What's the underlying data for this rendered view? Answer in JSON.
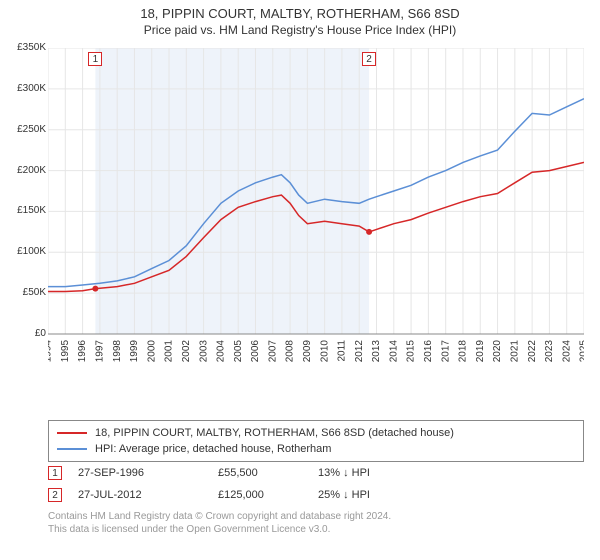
{
  "title_line1": "18, PIPPIN COURT, MALTBY, ROTHERHAM, S66 8SD",
  "title_line2": "Price paid vs. HM Land Registry's House Price Index (HPI)",
  "chart": {
    "type": "line",
    "background_color": "#ffffff",
    "grid_color": "#e6e6e6",
    "shaded_band_color": "#eef3fa",
    "shaded_band_x_start": 1996.74,
    "shaded_band_x_end": 2012.57,
    "xlim": [
      1994,
      2025
    ],
    "ylim": [
      0,
      350000
    ],
    "ytick_step": 50000,
    "ytick_labels": [
      "£0",
      "£50K",
      "£100K",
      "£150K",
      "£200K",
      "£250K",
      "£300K",
      "£350K"
    ],
    "xtick_step": 1,
    "xtick_labels": [
      "1994",
      "1995",
      "1996",
      "1997",
      "1998",
      "1999",
      "2000",
      "2001",
      "2002",
      "2003",
      "2004",
      "2005",
      "2006",
      "2007",
      "2008",
      "2009",
      "2010",
      "2011",
      "2012",
      "2013",
      "2014",
      "2015",
      "2016",
      "2017",
      "2018",
      "2019",
      "2020",
      "2021",
      "2022",
      "2023",
      "2024",
      "2025"
    ],
    "axis_label_fontsize": 10,
    "axis_label_color": "#333333",
    "tick_rotation_deg": -90,
    "series": [
      {
        "name": "price_paid",
        "legend_label": "18, PIPPIN COURT, MALTBY, ROTHERHAM, S66 8SD (detached house)",
        "color": "#d62728",
        "line_width": 1.5,
        "data": [
          [
            1994,
            52000
          ],
          [
            1995,
            52000
          ],
          [
            1996,
            53000
          ],
          [
            1996.74,
            55500
          ],
          [
            1997,
            56000
          ],
          [
            1998,
            58000
          ],
          [
            1999,
            62000
          ],
          [
            2000,
            70000
          ],
          [
            2001,
            78000
          ],
          [
            2002,
            95000
          ],
          [
            2003,
            118000
          ],
          [
            2004,
            140000
          ],
          [
            2005,
            155000
          ],
          [
            2006,
            162000
          ],
          [
            2007,
            168000
          ],
          [
            2007.5,
            170000
          ],
          [
            2008,
            160000
          ],
          [
            2008.5,
            145000
          ],
          [
            2009,
            135000
          ],
          [
            2010,
            138000
          ],
          [
            2011,
            135000
          ],
          [
            2012,
            132000
          ],
          [
            2012.57,
            125000
          ],
          [
            2013,
            128000
          ],
          [
            2014,
            135000
          ],
          [
            2015,
            140000
          ],
          [
            2016,
            148000
          ],
          [
            2017,
            155000
          ],
          [
            2018,
            162000
          ],
          [
            2019,
            168000
          ],
          [
            2020,
            172000
          ],
          [
            2021,
            185000
          ],
          [
            2022,
            198000
          ],
          [
            2023,
            200000
          ],
          [
            2024,
            205000
          ],
          [
            2025,
            210000
          ]
        ]
      },
      {
        "name": "hpi",
        "legend_label": "HPI: Average price, detached house, Rotherham",
        "color": "#5b8fd6",
        "line_width": 1.5,
        "data": [
          [
            1994,
            58000
          ],
          [
            1995,
            58000
          ],
          [
            1996,
            60000
          ],
          [
            1997,
            62000
          ],
          [
            1998,
            65000
          ],
          [
            1999,
            70000
          ],
          [
            2000,
            80000
          ],
          [
            2001,
            90000
          ],
          [
            2002,
            108000
          ],
          [
            2003,
            135000
          ],
          [
            2004,
            160000
          ],
          [
            2005,
            175000
          ],
          [
            2006,
            185000
          ],
          [
            2007,
            192000
          ],
          [
            2007.5,
            195000
          ],
          [
            2008,
            185000
          ],
          [
            2008.5,
            170000
          ],
          [
            2009,
            160000
          ],
          [
            2010,
            165000
          ],
          [
            2011,
            162000
          ],
          [
            2012,
            160000
          ],
          [
            2012.57,
            165000
          ],
          [
            2013,
            168000
          ],
          [
            2014,
            175000
          ],
          [
            2015,
            182000
          ],
          [
            2016,
            192000
          ],
          [
            2017,
            200000
          ],
          [
            2018,
            210000
          ],
          [
            2019,
            218000
          ],
          [
            2020,
            225000
          ],
          [
            2021,
            248000
          ],
          [
            2022,
            270000
          ],
          [
            2023,
            268000
          ],
          [
            2024,
            278000
          ],
          [
            2025,
            288000
          ]
        ]
      }
    ],
    "sale_markers": [
      {
        "num": "1",
        "x": 1996.74,
        "y": 55500,
        "border_color": "#d62728",
        "dot_color": "#d62728"
      },
      {
        "num": "2",
        "x": 2012.57,
        "y": 125000,
        "border_color": "#d62728",
        "dot_color": "#d62728"
      }
    ]
  },
  "legend": {
    "items": [
      {
        "color": "#d62728",
        "label": "18, PIPPIN COURT, MALTBY, ROTHERHAM, S66 8SD (detached house)"
      },
      {
        "color": "#5b8fd6",
        "label": "HPI: Average price, detached house, Rotherham"
      }
    ]
  },
  "marker_rows": [
    {
      "num": "1",
      "border_color": "#d62728",
      "date": "27-SEP-1996",
      "price": "£55,500",
      "diff": "13% ↓ HPI"
    },
    {
      "num": "2",
      "border_color": "#d62728",
      "date": "27-JUL-2012",
      "price": "£125,000",
      "diff": "25% ↓ HPI"
    }
  ],
  "footer_line1": "Contains HM Land Registry data © Crown copyright and database right 2024.",
  "footer_line2": "This data is licensed under the Open Government Licence v3.0."
}
